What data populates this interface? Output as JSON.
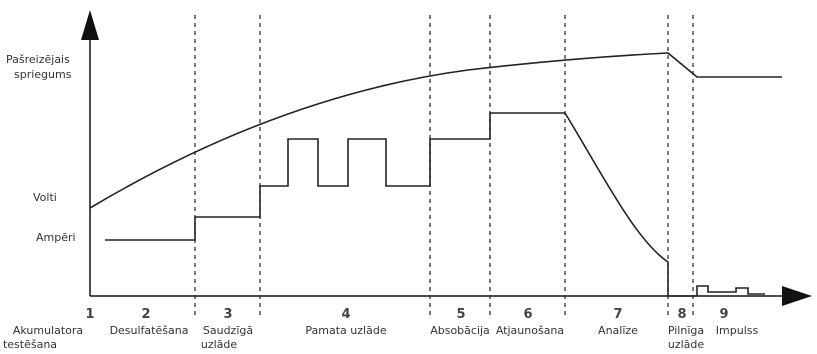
{
  "y_labels": {
    "voltage_1": "Pašreizējais",
    "voltage_2": "spriegums",
    "volts": "Volti",
    "amps": "Ampēri"
  },
  "stages": [
    {
      "num": "1",
      "line1": "Akumulatora",
      "line2": "testēšana"
    },
    {
      "num": "2",
      "line1": "Desulfatēšana",
      "line2": ""
    },
    {
      "num": "3",
      "line1": "Saudzīgā",
      "line2": "uzlāde"
    },
    {
      "num": "4",
      "line1": "Pamata uzlāde",
      "line2": ""
    },
    {
      "num": "5",
      "line1": "Absobācija",
      "line2": ""
    },
    {
      "num": "6",
      "line1": "Atjaunošana",
      "line2": ""
    },
    {
      "num": "7",
      "line1": "Analīze",
      "line2": ""
    },
    {
      "num": "8",
      "line1": "Pilnīga",
      "line2": "uzlāde"
    },
    {
      "num": "9",
      "line1": "Impulss",
      "line2": ""
    }
  ],
  "colors": {
    "axis": "#111111",
    "curve": "#222222",
    "divider": "#333333"
  }
}
